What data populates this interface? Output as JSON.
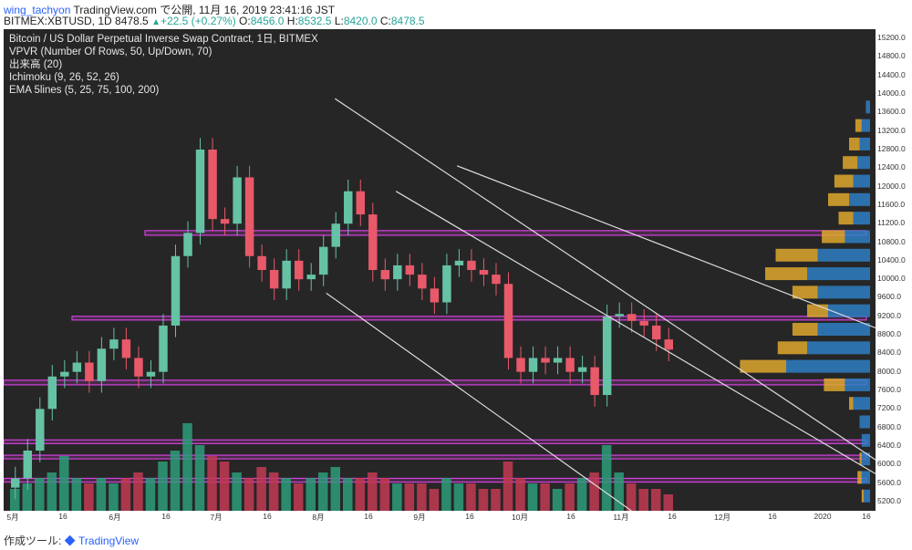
{
  "header": {
    "author": "wing_tachyon",
    "publish_line": " TradingView.com で公開, 11月 16, 2019 23:41:16 JST",
    "symbol": "BITMEX:XBTUSD, 1D ",
    "last": "8478.5",
    "up_icon": "triangle-up-icon",
    "change": "+22.5 (+0.27%)",
    "o_label": " O:",
    "o": "8456.0",
    "h_label": " H:",
    "h": "8532.5",
    "l_label": " L:",
    "l": "8420.0",
    "c_label": " C:",
    "c": "8478.5"
  },
  "legend": {
    "title": "Bitcoin / US Dollar Perpetual Inverse Swap Contract, 1日, BITMEX",
    "vpvr": "VPVR (Number Of Rows, 50, Up/Down, 70)",
    "volume": "出来高 (20)",
    "ichimoku": "Ichimoku (9, 26, 52, 26)",
    "ema": "EMA 5lines (5, 25, 75, 100, 200)"
  },
  "footer": {
    "made_with": "作成ツール: ",
    "brand": "TradingView"
  },
  "colors": {
    "background": "#262626",
    "up": "#26a69a",
    "down": "#ef5350",
    "candle_up": "#66c2a5",
    "candle_down": "#e8596a",
    "volume_up": "#2e9c7a",
    "volume_down": "#c23b54",
    "vpvr_up": "#e0a82e",
    "vpvr_down": "#2f7fc4",
    "zone": "#d640e0",
    "trendline": "#dcdcdc"
  },
  "chart_data": {
    "type": "candlestick",
    "price_axis_ticks": [
      "15200.0",
      "14800.0",
      "14400.0",
      "14000.0",
      "13600.0",
      "13200.0",
      "12800.0",
      "12400.0",
      "12000.0",
      "11600.0",
      "11200.0",
      "10800.0",
      "10400.0",
      "10000.0",
      "9600.0",
      "9200.0",
      "8800.0",
      "8400.0",
      "8000.0",
      "7600.0",
      "7200.0",
      "6800.0",
      "6400.0",
      "6000.0",
      "5600.0",
      "5200.0"
    ],
    "ylim": [
      5000,
      15400
    ],
    "time_axis_ticks": [
      "5月",
      "16",
      "6月",
      "16",
      "7月",
      "16",
      "8月",
      "16",
      "9月",
      "16",
      "10月",
      "16",
      "11月",
      "16",
      "12月",
      "16",
      "2020",
      "16"
    ],
    "approx_daily_close": [
      5700,
      6300,
      7200,
      7900,
      8000,
      8200,
      7800,
      8500,
      8700,
      8300,
      7900,
      8000,
      9000,
      10500,
      11000,
      12800,
      11300,
      11200,
      12200,
      10500,
      10200,
      9800,
      10400,
      10000,
      10100,
      10700,
      11200,
      11900,
      11400,
      10200,
      10000,
      10300,
      10100,
      9800,
      9500,
      10300,
      10400,
      10200,
      10100,
      9900,
      8300,
      8000,
      8300,
      8200,
      8300,
      8000,
      8100,
      7500,
      9200,
      9250,
      9100,
      9000,
      8700,
      8480
    ],
    "volume_relative": [
      0.2,
      0.25,
      0.3,
      0.35,
      0.5,
      0.3,
      0.25,
      0.3,
      0.25,
      0.3,
      0.35,
      0.3,
      0.45,
      0.55,
      0.8,
      0.6,
      0.5,
      0.45,
      0.35,
      0.3,
      0.4,
      0.35,
      0.3,
      0.25,
      0.3,
      0.35,
      0.4,
      0.3,
      0.3,
      0.35,
      0.3,
      0.25,
      0.25,
      0.25,
      0.2,
      0.3,
      0.25,
      0.25,
      0.2,
      0.2,
      0.45,
      0.3,
      0.25,
      0.25,
      0.2,
      0.25,
      0.3,
      0.35,
      0.6,
      0.35,
      0.25,
      0.2,
      0.2,
      0.15
    ],
    "horizontal_zones_price": [
      [
        10950,
        11050
      ],
      [
        9120,
        9200
      ],
      [
        7720,
        7820
      ],
      [
        6480,
        6530
      ],
      [
        6150,
        6200
      ],
      [
        5620,
        5700
      ]
    ],
    "vpvr_profile": [
      {
        "price": 13700,
        "up": 0.0,
        "down": 0.02
      },
      {
        "price": 13300,
        "up": 0.03,
        "down": 0.04
      },
      {
        "price": 12900,
        "up": 0.05,
        "down": 0.05
      },
      {
        "price": 12500,
        "up": 0.07,
        "down": 0.06
      },
      {
        "price": 12100,
        "up": 0.09,
        "down": 0.08
      },
      {
        "price": 11700,
        "up": 0.1,
        "down": 0.1
      },
      {
        "price": 11300,
        "up": 0.07,
        "down": 0.08
      },
      {
        "price": 10900,
        "up": 0.11,
        "down": 0.12
      },
      {
        "price": 10500,
        "up": 0.2,
        "down": 0.25
      },
      {
        "price": 10100,
        "up": 0.2,
        "down": 0.3
      },
      {
        "price": 9700,
        "up": 0.12,
        "down": 0.25
      },
      {
        "price": 9300,
        "up": 0.1,
        "down": 0.2
      },
      {
        "price": 8900,
        "up": 0.12,
        "down": 0.25
      },
      {
        "price": 8500,
        "up": 0.14,
        "down": 0.3
      },
      {
        "price": 8100,
        "up": 0.22,
        "down": 0.4
      },
      {
        "price": 7700,
        "up": 0.1,
        "down": 0.12
      },
      {
        "price": 7300,
        "up": 0.02,
        "down": 0.08
      },
      {
        "price": 6900,
        "up": 0.0,
        "down": 0.05
      },
      {
        "price": 6500,
        "up": 0.0,
        "down": 0.04
      },
      {
        "price": 6100,
        "up": 0.01,
        "down": 0.04
      },
      {
        "price": 5700,
        "up": 0.02,
        "down": 0.04
      },
      {
        "price": 5300,
        "up": 0.01,
        "down": 0.03
      }
    ],
    "trendlines_price": [
      {
        "from_day": 0.38,
        "from_price": 13900,
        "to_day": 1.0,
        "to_price": 6100
      },
      {
        "from_day": 0.52,
        "from_price": 12450,
        "to_day": 1.0,
        "to_price": 8950
      },
      {
        "from_day": 0.37,
        "from_price": 9700,
        "to_day": 0.72,
        "to_price": 5000
      },
      {
        "from_day": 0.45,
        "from_price": 11900,
        "to_day": 1.0,
        "to_price": 5800
      }
    ],
    "grid": false
  }
}
